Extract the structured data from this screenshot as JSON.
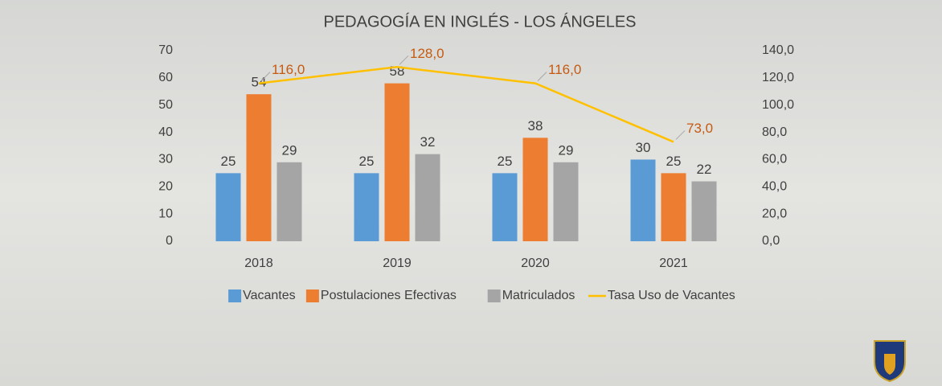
{
  "chart_data": {
    "type": "bar",
    "title": "PEDAGOGÍA EN INGLÉS - LOS ÁNGELES",
    "categories": [
      "2018",
      "2019",
      "2020",
      "2021"
    ],
    "series": [
      {
        "name": "Vacantes",
        "color": "#5b9bd5",
        "values": [
          25,
          25,
          25,
          30
        ]
      },
      {
        "name": "Postulaciones Efectivas",
        "color": "#ed7d31",
        "values": [
          54,
          58,
          38,
          25
        ]
      },
      {
        "name": "Matriculados",
        "color": "#a5a5a5",
        "values": [
          29,
          32,
          29,
          22
        ]
      },
      {
        "name": "Tasa Uso de Vacantes",
        "type": "line",
        "axis": "y2",
        "color": "#ffc000",
        "values": [
          116,
          128,
          116,
          73
        ],
        "value_labels": [
          "116,0",
          "128,0",
          "116,0",
          "73,0"
        ],
        "label_color": "#c55a11"
      }
    ],
    "ylim": [
      0,
      70
    ],
    "yticks": [
      0,
      10,
      20,
      30,
      40,
      50,
      60,
      70
    ],
    "y2lim": [
      0,
      140
    ],
    "y2ticks": [
      {
        "value": 0,
        "label": "0,0"
      },
      {
        "value": 20,
        "label": "20,0"
      },
      {
        "value": 40,
        "label": "40,0"
      },
      {
        "value": 60,
        "label": "60,0"
      },
      {
        "value": 80,
        "label": "80,0"
      },
      {
        "value": 100,
        "label": "100,0"
      },
      {
        "value": 120,
        "label": "120,0"
      },
      {
        "value": 140,
        "label": "140,0"
      }
    ],
    "grid": false,
    "legend": "bottom"
  }
}
